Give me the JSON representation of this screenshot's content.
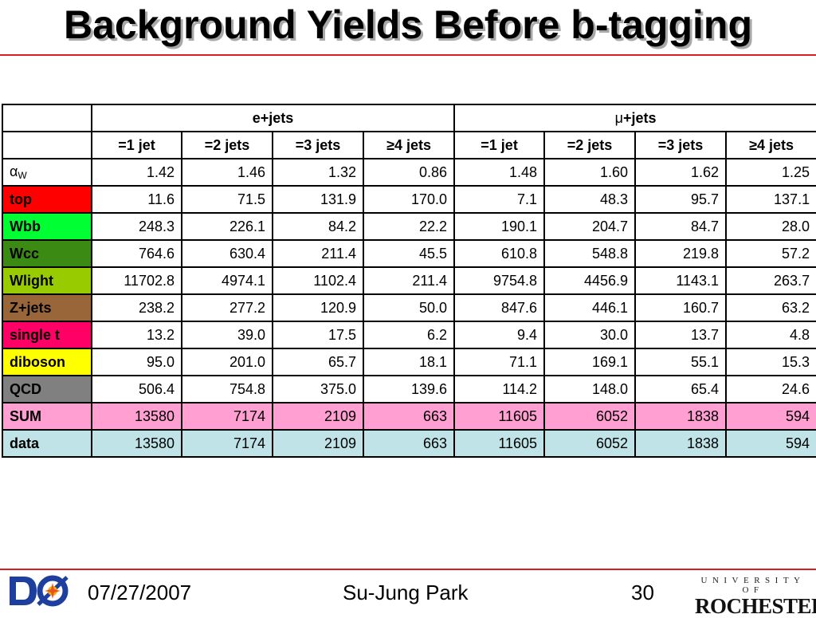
{
  "title": "Background Yields Before b-tagging",
  "groups": [
    {
      "label": "e+jets"
    },
    {
      "mu": "μ",
      "label": "+jets"
    }
  ],
  "columns": [
    "=1 jet",
    "=2 jets",
    "=3 jets",
    "≥4 jets",
    "=1 jet",
    "=2 jets",
    "=3 jets",
    "≥4 jets"
  ],
  "alpha_row": {
    "symbol": "α",
    "sub": "W",
    "values": [
      "1.42",
      "1.46",
      "1.32",
      "0.86",
      "1.48",
      "1.60",
      "1.62",
      "1.25"
    ]
  },
  "rows": [
    {
      "label": "top",
      "color": "#ff0000",
      "text_color": "#000000",
      "values": [
        "11.6",
        "71.5",
        "131.9",
        "170.0",
        "7.1",
        "48.3",
        "95.7",
        "137.1"
      ]
    },
    {
      "label": "Wbb",
      "color": "#00ff33",
      "text_color": "#000000",
      "values": [
        "248.3",
        "226.1",
        "84.2",
        "22.2",
        "190.1",
        "204.7",
        "84.7",
        "28.0"
      ]
    },
    {
      "label": "Wcc",
      "color": "#3a8a13",
      "text_color": "#000000",
      "values": [
        "764.6",
        "630.4",
        "211.4",
        "45.5",
        "610.8",
        "548.8",
        "219.8",
        "57.2"
      ]
    },
    {
      "label": "Wlight",
      "color": "#99cc00",
      "text_color": "#000000",
      "values": [
        "11702.8",
        "4974.1",
        "1102.4",
        "211.4",
        "9754.8",
        "4456.9",
        "1143.1",
        "263.7"
      ]
    },
    {
      "label": "Z+jets",
      "color": "#99663a",
      "text_color": "#000000",
      "values": [
        "238.2",
        "277.2",
        "120.9",
        "50.0",
        "847.6",
        "446.1",
        "160.7",
        "63.2"
      ]
    },
    {
      "label": "single t",
      "color": "#ff0066",
      "text_color": "#000000",
      "values": [
        "13.2",
        "39.0",
        "17.5",
        "6.2",
        "9.4",
        "30.0",
        "13.7",
        "4.8"
      ]
    },
    {
      "label": "diboson",
      "color": "#ffff00",
      "text_color": "#000000",
      "values": [
        "95.0",
        "201.0",
        "65.7",
        "18.1",
        "71.1",
        "169.1",
        "55.1",
        "15.3"
      ]
    },
    {
      "label": "QCD",
      "color": "#808080",
      "text_color": "#000000",
      "values": [
        "506.4",
        "754.8",
        "375.0",
        "139.6",
        "114.2",
        "148.0",
        "65.4",
        "24.6"
      ]
    }
  ],
  "sum_row": {
    "label": "SUM",
    "values": [
      "13580",
      "7174",
      "2109",
      "663",
      "11605",
      "6052",
      "1838",
      "594"
    ]
  },
  "data_row": {
    "label": "data",
    "values": [
      "13580",
      "7174",
      "2109",
      "663",
      "11605",
      "6052",
      "1838",
      "594"
    ]
  },
  "footer": {
    "date": "07/27/2007",
    "author": "Su-Jung Park",
    "page": "30",
    "d0_logo": "DØ",
    "univ_top": "UNIVERSITY OF",
    "univ_main": "ROCHESTER"
  }
}
